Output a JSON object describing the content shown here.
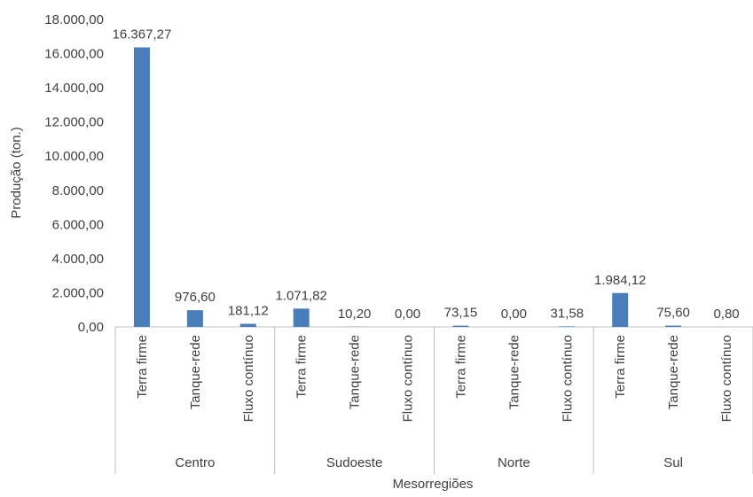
{
  "chart_data": {
    "type": "bar",
    "title": "",
    "ylabel": "Produção (ton.)",
    "xlabel": "Mesorregiões",
    "ylim": [
      0,
      18000
    ],
    "ytick_values": [
      0,
      2000,
      4000,
      6000,
      8000,
      10000,
      12000,
      14000,
      16000,
      18000
    ],
    "ytick_labels": [
      "0,00",
      "2.000,00",
      "4.000,00",
      "6.000,00",
      "8.000,00",
      "10.000,00",
      "12.000,00",
      "14.000,00",
      "16.000,00",
      "18.000,00"
    ],
    "grid": false,
    "legend": "none",
    "bar_color": "#4a7ebb",
    "groups": [
      {
        "name": "Centro",
        "categories": [
          "Terra firme",
          "Tanque-rede",
          "Fluxo contínuo"
        ],
        "values": [
          16367.27,
          976.6,
          181.12
        ],
        "labels": [
          "16.367,27",
          "976,60",
          "181,12"
        ]
      },
      {
        "name": "Sudoeste",
        "categories": [
          "Terra firme",
          "Tanque-rede",
          "Fluxo contínuo"
        ],
        "values": [
          1071.82,
          10.2,
          0.0
        ],
        "labels": [
          "1.071,82",
          "10,20",
          "0,00"
        ]
      },
      {
        "name": "Norte",
        "categories": [
          "Terra firme",
          "Tanque-rede",
          "Fluxo contínuo"
        ],
        "values": [
          73.15,
          0.0,
          31.58
        ],
        "labels": [
          "73,15",
          "0,00",
          "31,58"
        ]
      },
      {
        "name": "Sul",
        "categories": [
          "Terra firme",
          "Tanque-rede",
          "Fluxo contínuo"
        ],
        "values": [
          1984.12,
          75.6,
          0.8
        ],
        "labels": [
          "1.984,12",
          "75,60",
          "0,80"
        ]
      }
    ]
  }
}
